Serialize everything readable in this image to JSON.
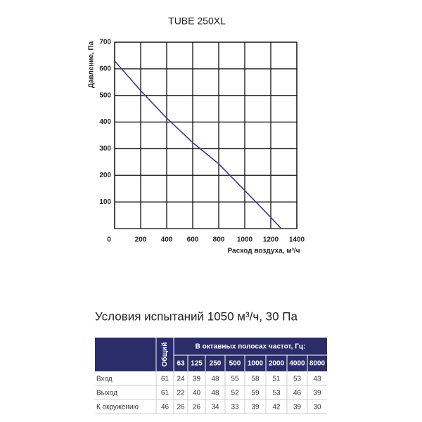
{
  "chart_data": {
    "type": "line",
    "title": "TUBE 250XL",
    "x_label": "Расход воздуха, м³/ч",
    "y_label": "Давление, Па",
    "x": [
      0,
      200,
      400,
      600,
      800,
      1000,
      1200,
      1280
    ],
    "values": [
      630,
      518,
      415,
      323,
      243,
      143,
      42,
      0
    ],
    "color": "#3b3b8f",
    "xlim": [
      0,
      1400
    ],
    "xticks": [
      0,
      200,
      400,
      600,
      800,
      1000,
      1200,
      1400
    ],
    "ylim": [
      0,
      700
    ],
    "yticks": [
      100,
      200,
      300,
      400,
      500,
      600,
      700
    ],
    "grid": true
  },
  "test_conditions": "Условия испытаний 1050 м³/ч, 30 Па",
  "table": {
    "total_header": "Общий",
    "bands_header": "В октавных полосах частот, Гц:",
    "frequencies": [
      63,
      125,
      250,
      500,
      1000,
      2000,
      4000,
      8000
    ],
    "rows": [
      {
        "label": "Вход",
        "total": 61,
        "values": [
          24,
          39,
          48,
          55,
          58,
          51,
          53,
          43
        ]
      },
      {
        "label": "Выход",
        "total": 61,
        "values": [
          22,
          40,
          48,
          52,
          59,
          53,
          46,
          39
        ]
      },
      {
        "label": "К окружению",
        "total": 46,
        "values": [
          26,
          26,
          34,
          33,
          39,
          42,
          39,
          30
        ]
      }
    ]
  }
}
